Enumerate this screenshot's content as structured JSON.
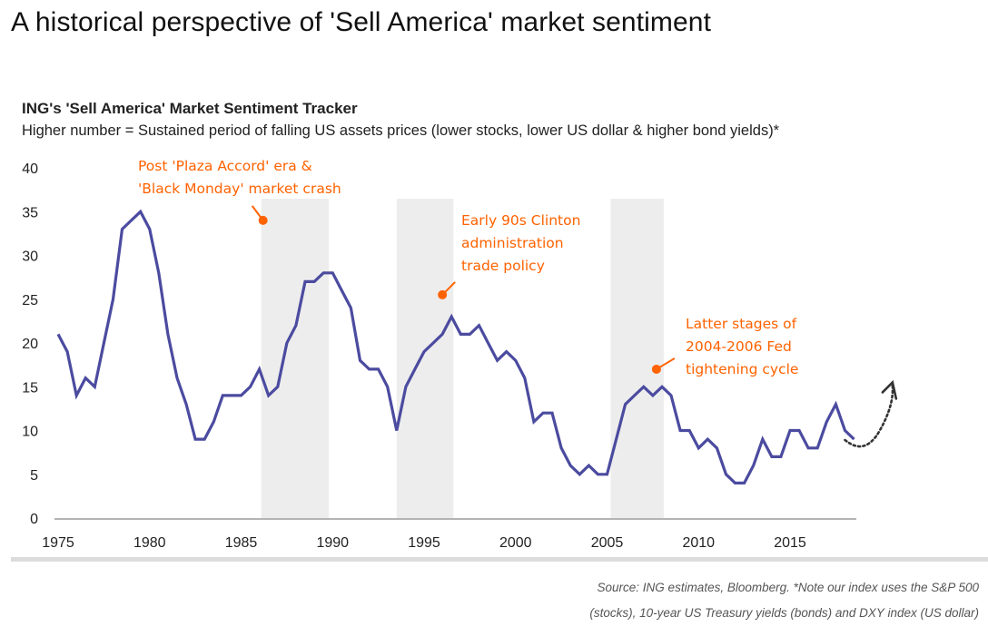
{
  "page": {
    "title": "A historical perspective of 'Sell America' market sentiment"
  },
  "chart_data": {
    "type": "line",
    "title": "ING's 'Sell America' Market Sentiment Tracker",
    "subtitle": "Higher number = Sustained period of falling US assets prices (lower stocks, lower US dollar & higher bond yields)*",
    "xlabel": "",
    "ylabel": "",
    "ylim": [
      0,
      40
    ],
    "xlim": [
      1975,
      2019
    ],
    "grid": false,
    "yticks": [
      0,
      5,
      10,
      15,
      20,
      25,
      30,
      35,
      40
    ],
    "xticks": [
      1975,
      1980,
      1985,
      1990,
      1995,
      2000,
      2005,
      2010,
      2015
    ],
    "colors": {
      "line": "#4b4ba0",
      "annotation": "#ff6200",
      "shade": "#ededed",
      "axis": "#888888",
      "forecast_arrow": "#333333"
    },
    "series": [
      {
        "name": "Sell America Market Sentiment Tracker",
        "x": [
          1975,
          1975.5,
          1976,
          1976.5,
          1977,
          1977.5,
          1978,
          1978.5,
          1979,
          1979.5,
          1980,
          1980.5,
          1981,
          1981.5,
          1982,
          1982.5,
          1983,
          1983.5,
          1984,
          1984.5,
          1985,
          1985.5,
          1986,
          1986.5,
          1987,
          1987.5,
          1988,
          1988.5,
          1989,
          1989.5,
          1990,
          1990.5,
          1991,
          1991.5,
          1992,
          1992.5,
          1993,
          1993.5,
          1994,
          1994.5,
          1995,
          1995.5,
          1996,
          1996.5,
          1997,
          1997.5,
          1998,
          1998.5,
          1999,
          1999.5,
          2000,
          2000.5,
          2001,
          2001.5,
          2002,
          2002.5,
          2003,
          2003.5,
          2004,
          2004.5,
          2005,
          2005.5,
          2006,
          2006.5,
          2007,
          2007.5,
          2008,
          2008.5,
          2009,
          2009.5,
          2010,
          2010.5,
          2011,
          2011.5,
          2012,
          2012.5,
          2013,
          2013.5,
          2014,
          2014.5,
          2015,
          2015.5,
          2016,
          2016.5,
          2017,
          2017.5,
          2018,
          2018.5
        ],
        "values": [
          21,
          19,
          14,
          16,
          15,
          20,
          25,
          33,
          34,
          35,
          33,
          28,
          21,
          16,
          13,
          9,
          9,
          11,
          14,
          14,
          14,
          15,
          17,
          14,
          15,
          20,
          22,
          27,
          27,
          28,
          28,
          26,
          24,
          18,
          17,
          17,
          15,
          10,
          15,
          17,
          19,
          20,
          21,
          23,
          21,
          21,
          22,
          20,
          18,
          19,
          18,
          16,
          11,
          12,
          12,
          8,
          6,
          5,
          6,
          5,
          5,
          9,
          13,
          14,
          15,
          14,
          15,
          14,
          10,
          10,
          8,
          9,
          8,
          5,
          4,
          4,
          6,
          9,
          7,
          7,
          10,
          10,
          8,
          8,
          11,
          13,
          10,
          9
        ]
      }
    ],
    "shaded_periods": [
      {
        "start": 1986.1,
        "end": 1989.8
      },
      {
        "start": 1993.5,
        "end": 1996.6
      },
      {
        "start": 2005.2,
        "end": 2008.1
      }
    ],
    "annotations": [
      {
        "lines": [
          "Post 'Plaza Accord' era &",
          "'Black Monday' market crash"
        ],
        "point": [
          1986.2,
          34
        ]
      },
      {
        "lines": [
          "Early 90s Clinton",
          "administration",
          "trade policy"
        ],
        "point": [
          1996.0,
          25.5
        ]
      },
      {
        "lines": [
          "Latter stages of",
          "2004-2006 Fed",
          "tightening cycle"
        ],
        "point": [
          2007.7,
          17
        ]
      }
    ],
    "forecast_arrow": {
      "style": "dotted",
      "direction": "up",
      "from": [
        2018.5,
        8.5
      ],
      "to": [
        2020.6,
        15.5
      ]
    }
  },
  "source": {
    "line1": "Source: ING estimates, Bloomberg. *Note our index uses the S&P 500",
    "line2": "(stocks), 10-year US Treasury yields (bonds) and DXY index (US dollar)"
  }
}
